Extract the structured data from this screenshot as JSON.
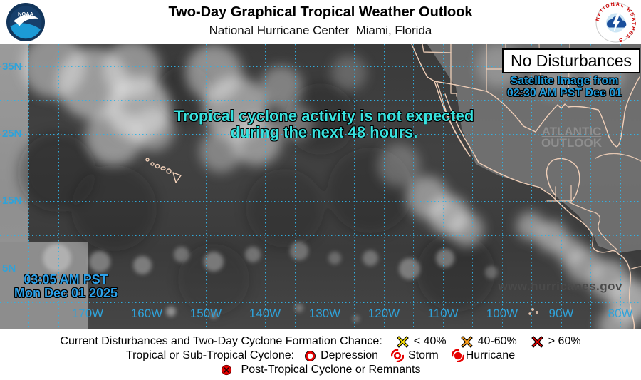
{
  "header": {
    "title": "Two-Day Graphical Tropical Weather Outlook",
    "subtitle": "National Hurricane Center  Miami, Florida",
    "noaa_logo_text": "NOAA",
    "nws_logo_text": "NATIONAL WEATHER SERVICE"
  },
  "map": {
    "status_box": "No Disturbances",
    "satellite_caption_line1": "Satellite Image from",
    "satellite_caption_line2": "02:30 AM PST Dec 01",
    "atlantic_link_line1": "ATLANTIC",
    "atlantic_link_line2": "OUTLOOK",
    "message_line1": "Tropical cyclone activity is not expected",
    "message_line2": "during the next 48 hours.",
    "timestamp_line1": "03:05 AM PST",
    "timestamp_line2": "Mon Dec 01 2025",
    "website": "www.hurricanes.gov",
    "lat_labels": [
      "35N",
      "25N",
      "15N",
      "5N"
    ],
    "lon_labels": [
      "170W",
      "160W",
      "150W",
      "140W",
      "130W",
      "120W",
      "110W",
      "100W",
      "90W",
      "80W"
    ]
  },
  "legend": {
    "row1_label": "Current Disturbances and Two-Day Cyclone Formation Chance:",
    "chance_items": [
      {
        "label": "< 40%",
        "color": "#ffe600",
        "icon": "x-marker-yellow"
      },
      {
        "label": "40-60%",
        "color": "#ff9e16",
        "icon": "x-marker-orange"
      },
      {
        "label": "> 60%",
        "color": "#e60000",
        "icon": "x-marker-red"
      }
    ],
    "row2_label": "Tropical or Sub-Tropical Cyclone:",
    "cyclone_items": [
      {
        "label": "Depression",
        "icon": "depression-circle"
      },
      {
        "label": "Storm",
        "icon": "storm-spiral"
      },
      {
        "label": "Hurricane",
        "icon": "hurricane-spiral"
      }
    ],
    "row3_item": {
      "label": "Post-Tropical Cyclone or Remnants",
      "icon": "post-tropical-circle-x"
    }
  },
  "colors": {
    "caption_blue": "#1f9ad9",
    "timestamp_blue": "#2ba1ea",
    "message_cyan": "#38e2df",
    "grid_cyan": "#2fb2e6",
    "symbol_red": "#e60000",
    "land_outline": "#f0cfb8"
  }
}
